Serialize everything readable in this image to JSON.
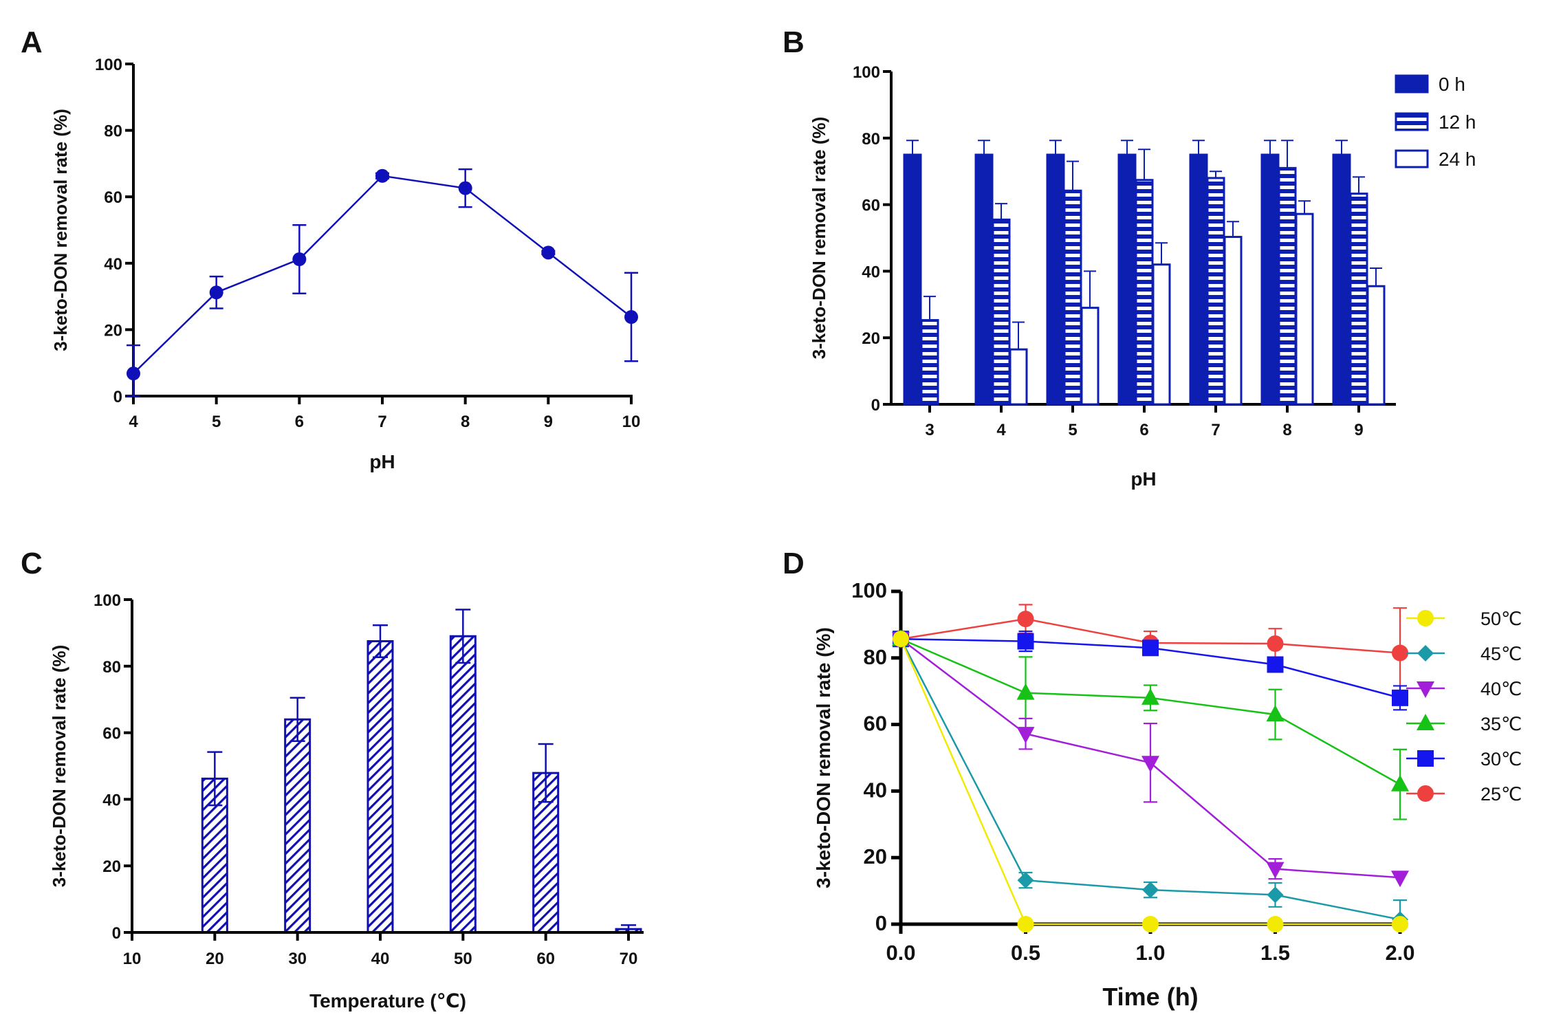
{
  "chart_data": [
    {
      "panel": "A",
      "type": "line",
      "xlabel": "pH",
      "ylabel": "3-keto-DON removal rate (%)",
      "x": [
        4,
        5,
        6,
        7,
        8,
        9,
        10
      ],
      "x_ticks": [
        "4",
        "5",
        "6",
        "7",
        "8",
        "9",
        "10"
      ],
      "y_ticks": [
        "0",
        "20",
        "40",
        "60",
        "80",
        "100"
      ],
      "xlim": [
        4,
        10
      ],
      "ylim": [
        0,
        100
      ],
      "values": [
        6.8,
        31.2,
        41.2,
        66.3,
        62.6,
        43.2,
        23.8
      ],
      "errors": [
        8.5,
        4.8,
        10.3,
        0.8,
        5.7,
        0.5,
        13.3
      ],
      "color": "#1010b8"
    },
    {
      "panel": "B",
      "type": "bar",
      "xlabel": "pH",
      "ylabel": "3-keto-DON removal rate (%)",
      "categories": [
        "3",
        "4",
        "5",
        "6",
        "7",
        "8",
        "9"
      ],
      "y_ticks": [
        "0",
        "20",
        "40",
        "60",
        "80",
        "100"
      ],
      "ylim": [
        0,
        100
      ],
      "series": [
        {
          "name": "0 h",
          "style": "solid",
          "values": [
            75,
            75,
            75,
            75,
            75,
            75,
            75
          ],
          "errors": [
            4.3,
            4.3,
            4.3,
            4.3,
            4.3,
            4.3,
            4.3
          ]
        },
        {
          "name": "12 h",
          "style": "horizontal-stripes",
          "values": [
            25.3,
            55.5,
            64.2,
            67.4,
            68.0,
            71.0,
            63.3
          ],
          "errors": [
            7.1,
            4.8,
            8.8,
            9.2,
            2.0,
            8.3,
            5.0
          ]
        },
        {
          "name": "24 h",
          "style": "open",
          "values": [
            0,
            16.5,
            29.0,
            42.0,
            50.3,
            57.2,
            35.5
          ],
          "errors": [
            0,
            8.2,
            11.0,
            6.5,
            4.6,
            3.9,
            5.4
          ]
        }
      ],
      "color": "#0c1fb0"
    },
    {
      "panel": "C",
      "type": "bar",
      "xlabel": "Temperature (℃)",
      "ylabel": "3-keto-DON removal rate (%)",
      "categories": [
        20,
        30,
        40,
        50,
        60,
        70
      ],
      "x_ticks": [
        "10",
        "20",
        "30",
        "40",
        "50",
        "60",
        "70"
      ],
      "y_ticks": [
        "0",
        "20",
        "40",
        "60",
        "80",
        "100"
      ],
      "xlim": [
        10,
        71
      ],
      "ylim": [
        0,
        100
      ],
      "values": [
        46.2,
        64.0,
        87.5,
        89.0,
        47.9,
        1.0
      ],
      "errors": [
        8.0,
        6.5,
        4.8,
        8.0,
        8.7,
        1.2
      ],
      "style": "diagonal-hatch",
      "color": "#1010b0"
    },
    {
      "panel": "D",
      "type": "line",
      "xlabel": "Time (h)",
      "ylabel": "3-keto-DON removal rate (%)",
      "x": [
        0,
        0.5,
        1.0,
        1.5,
        2.0
      ],
      "x_ticks": [
        "0.0",
        "0.5",
        "1.0",
        "1.5",
        "2.0"
      ],
      "y_ticks": [
        "0",
        "20",
        "40",
        "60",
        "80",
        "100"
      ],
      "xlim": [
        0,
        2.0
      ],
      "ylim": [
        0,
        100
      ],
      "legend_position": "right",
      "series": [
        {
          "name": "50℃",
          "color": "#f2ea00",
          "marker": "circle",
          "values": [
            85.7,
            0,
            0,
            0,
            0
          ],
          "errors": [
            0,
            0,
            0,
            0,
            0
          ]
        },
        {
          "name": "45℃",
          "color": "#1a9aa8",
          "marker": "diamond",
          "values": [
            85.7,
            13.2,
            10.3,
            8.8,
            1.4
          ],
          "errors": [
            0,
            2.3,
            2.3,
            3.6,
            5.8
          ]
        },
        {
          "name": "40℃",
          "color": "#a21ed8",
          "marker": "triangle-down",
          "values": [
            85.7,
            57.2,
            48.5,
            16.6,
            14.0
          ],
          "errors": [
            0,
            4.6,
            11.8,
            3.0,
            0
          ]
        },
        {
          "name": "35℃",
          "color": "#15c215",
          "marker": "triangle-up",
          "values": [
            85.7,
            69.5,
            68.0,
            63.0,
            42.0
          ],
          "errors": [
            0,
            10.8,
            3.8,
            7.5,
            10.5
          ]
        },
        {
          "name": "30℃",
          "color": "#1515ee",
          "marker": "square",
          "values": [
            85.7,
            85.0,
            83.0,
            78.0,
            68.0
          ],
          "errors": [
            0,
            3.0,
            1.2,
            0,
            3.6
          ]
        },
        {
          "name": "25℃",
          "color": "#ef4040",
          "marker": "circle",
          "values": [
            85.7,
            91.7,
            84.5,
            84.3,
            81.5
          ],
          "errors": [
            0,
            4.3,
            3.5,
            4.5,
            13.5
          ]
        }
      ]
    }
  ]
}
